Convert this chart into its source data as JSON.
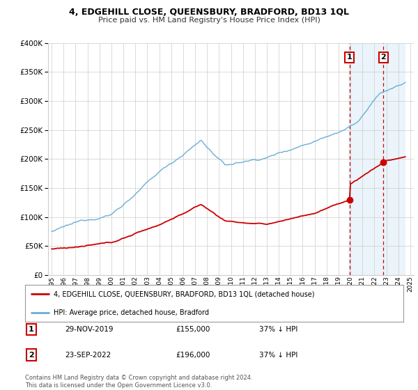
{
  "title": "4, EDGEHILL CLOSE, QUEENSBURY, BRADFORD, BD13 1QL",
  "subtitle": "Price paid vs. HM Land Registry's House Price Index (HPI)",
  "legend_line1": "4, EDGEHILL CLOSE, QUEENSBURY, BRADFORD, BD13 1QL (detached house)",
  "legend_line2": "HPI: Average price, detached house, Bradford",
  "sale1_date": "29-NOV-2019",
  "sale1_price": 155000,
  "sale1_label": "1",
  "sale1_hpi_pct": "37% ↓ HPI",
  "sale2_date": "23-SEP-2022",
  "sale2_price": 196000,
  "sale2_label": "2",
  "sale2_hpi_pct": "37% ↓ HPI",
  "footer": "Contains HM Land Registry data © Crown copyright and database right 2024.\nThis data is licensed under the Open Government Licence v3.0.",
  "hpi_color": "#6baed6",
  "hpi_fill_color": "#ddeef8",
  "property_color": "#cc0000",
  "dashed_color": "#cc0000",
  "ylim": [
    0,
    400000
  ],
  "xlim_start": 1994.7,
  "xlim_end": 2025.3,
  "background_color": "#ffffff",
  "plot_bg_color": "#ffffff",
  "grid_color": "#cccccc",
  "sale1_x": 2019.917,
  "sale2_x": 2022.75
}
